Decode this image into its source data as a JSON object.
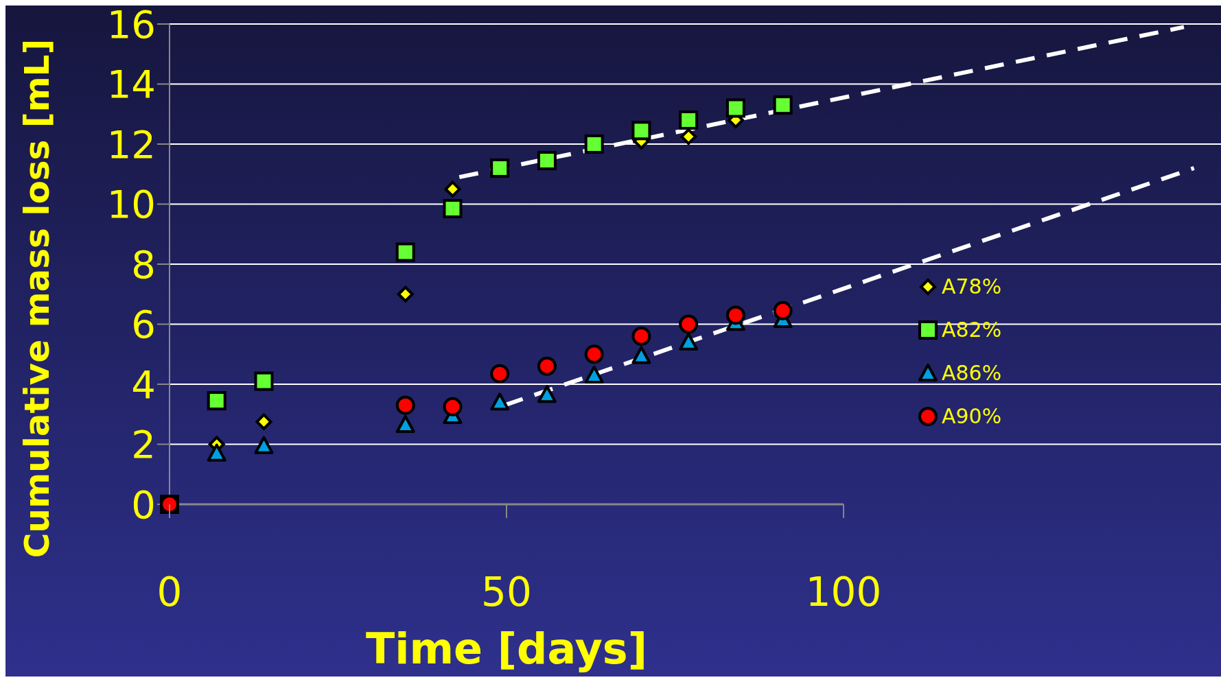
{
  "chart_data": {
    "type": "scatter",
    "xlabel": "Time [days]",
    "ylabel": "Cumulative mass loss [mL]",
    "x": [
      0,
      7,
      14,
      35,
      42,
      49,
      56,
      63,
      70,
      77,
      84,
      91
    ],
    "series": [
      {
        "name": "A78%",
        "color": "#ffff00",
        "marker": "diamond",
        "values": [
          null,
          2.0,
          2.75,
          7.0,
          10.5,
          null,
          null,
          null,
          12.1,
          12.25,
          12.8,
          null
        ]
      },
      {
        "name": "A82%",
        "color": "#66ff33",
        "marker": "square",
        "values": [
          0,
          3.45,
          4.1,
          8.4,
          9.85,
          11.2,
          11.45,
          12.0,
          12.45,
          12.8,
          13.2,
          13.3
        ]
      },
      {
        "name": "A86%",
        "color": "#00a0e0",
        "marker": "triangle",
        "values": [
          null,
          1.7,
          1.95,
          2.65,
          2.95,
          3.4,
          3.65,
          4.3,
          4.95,
          5.4,
          6.05,
          6.15
        ]
      },
      {
        "name": "A90%",
        "color": "#ff0000",
        "marker": "circle",
        "values": [
          0,
          null,
          null,
          3.3,
          3.25,
          4.35,
          4.6,
          5.0,
          5.6,
          6.0,
          6.3,
          6.45
        ]
      },
      {
        "type": "line",
        "color": "#ffffff",
        "line_style": "dashed",
        "marker": "none",
        "x": [
          43,
          150.5
        ],
        "values": [
          10.9,
          15.9
        ]
      },
      {
        "type": "line",
        "color": "#ffffff",
        "line_style": "dashed",
        "marker": "none",
        "x": [
          49.7,
          152
        ],
        "values": [
          3.3,
          11.2
        ]
      }
    ],
    "xlim": [
      0,
      156
    ],
    "xticks": [
      0,
      50,
      100
    ],
    "ylim": [
      0,
      16
    ],
    "yticks": [
      0,
      2,
      4,
      6,
      8,
      10,
      12,
      14,
      16
    ],
    "grid": "y",
    "legend": "right"
  }
}
